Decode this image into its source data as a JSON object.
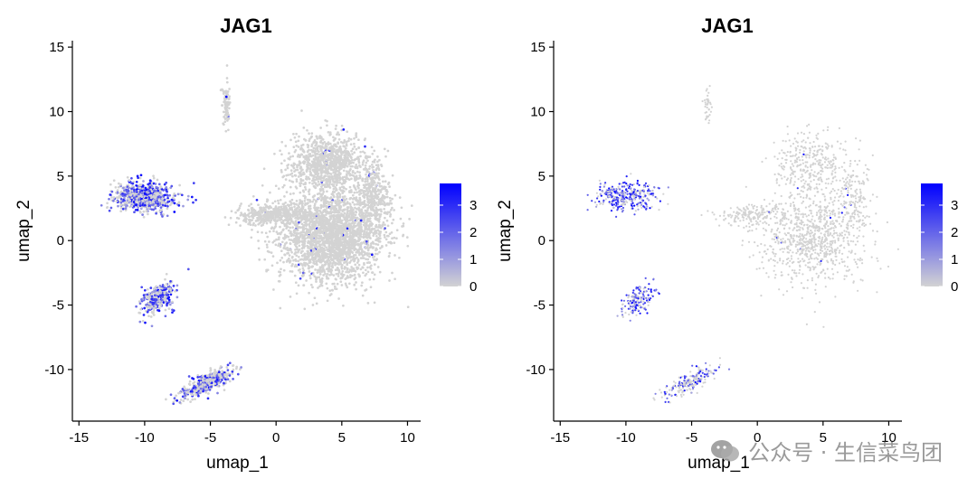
{
  "colors": {
    "low": "#D3D3D3",
    "high": "#0000FF",
    "axis": "#000000",
    "text": "#000000"
  },
  "chart_data": [
    {
      "type": "scatter",
      "subtype": "umap-feature-plot",
      "title": "JAG1",
      "xlabel": "umap_1",
      "ylabel": "umap_2",
      "xlim": [
        -15.5,
        11
      ],
      "ylim": [
        -14,
        15.5
      ],
      "xticks": [
        -15,
        -10,
        -5,
        0,
        5,
        10
      ],
      "yticks": [
        -10,
        -5,
        0,
        5,
        10,
        15
      ],
      "color_scale": {
        "min": 0,
        "max": 3.8,
        "ticks": [
          0,
          1,
          2,
          3
        ]
      },
      "grid": false,
      "legend": "right colorbar",
      "density": "dense",
      "clusters": [
        {
          "name": "large-main",
          "center": [
            4.2,
            0.5
          ],
          "spread": [
            3.6,
            3.3
          ],
          "n": 2600,
          "expression": 0.05
        },
        {
          "name": "main-top",
          "center": [
            4.0,
            6.0
          ],
          "spread": [
            2.6,
            2.0
          ],
          "n": 900,
          "expression": 0.05
        },
        {
          "name": "main-left-arm",
          "center": [
            -0.5,
            2.0
          ],
          "spread": [
            2.2,
            0.7
          ],
          "n": 380,
          "expression": 0.05
        },
        {
          "name": "main-right-arm",
          "center": [
            7.5,
            3.5
          ],
          "spread": [
            1.1,
            2.5
          ],
          "n": 320,
          "expression": 0.05
        },
        {
          "name": "thin-stalk",
          "center": [
            -3.8,
            10.5
          ],
          "spread": [
            0.25,
            1.6
          ],
          "n": 90,
          "expression": 0.05
        },
        {
          "name": "left-upper",
          "center": [
            -10.0,
            3.4
          ],
          "spread": [
            2.1,
            1.0
          ],
          "n": 700,
          "expression": 0.6
        },
        {
          "name": "left-middle",
          "center": [
            -9.0,
            -4.5
          ],
          "spread": [
            1.1,
            1.0
          ],
          "n": 330,
          "expression": 0.55
        },
        {
          "name": "left-lower",
          "center": [
            -5.2,
            -11.0
          ],
          "spread": [
            1.8,
            0.7
          ],
          "n": 420,
          "expression": 0.45
        }
      ]
    },
    {
      "type": "scatter",
      "subtype": "umap-feature-plot",
      "title": "JAG1",
      "xlabel": "umap_1",
      "ylabel": "umap_2",
      "xlim": [
        -15.5,
        11
      ],
      "ylim": [
        -14,
        15.5
      ],
      "xticks": [
        -15,
        -10,
        -5,
        0,
        5,
        10
      ],
      "yticks": [
        -10,
        -5,
        0,
        5,
        10,
        15
      ],
      "color_scale": {
        "min": 0,
        "max": 3.8,
        "ticks": [
          0,
          1,
          2,
          3
        ]
      },
      "grid": false,
      "legend": "right colorbar",
      "density": "sparse",
      "clusters": [
        {
          "name": "large-main",
          "center": [
            4.2,
            0.5
          ],
          "spread": [
            3.6,
            3.3
          ],
          "n": 900,
          "expression": 0.03
        },
        {
          "name": "main-top",
          "center": [
            4.0,
            6.0
          ],
          "spread": [
            2.6,
            2.0
          ],
          "n": 320,
          "expression": 0.03
        },
        {
          "name": "main-left-arm",
          "center": [
            -0.5,
            2.0
          ],
          "spread": [
            2.2,
            0.7
          ],
          "n": 150,
          "expression": 0.03
        },
        {
          "name": "main-right-arm",
          "center": [
            7.5,
            3.5
          ],
          "spread": [
            1.1,
            2.5
          ],
          "n": 120,
          "expression": 0.03
        },
        {
          "name": "thin-stalk",
          "center": [
            -3.8,
            10.5
          ],
          "spread": [
            0.25,
            1.6
          ],
          "n": 40,
          "expression": 0.03
        },
        {
          "name": "left-upper",
          "center": [
            -10.0,
            3.4
          ],
          "spread": [
            2.1,
            1.0
          ],
          "n": 320,
          "expression": 0.7
        },
        {
          "name": "left-middle",
          "center": [
            -9.0,
            -4.5
          ],
          "spread": [
            1.1,
            1.0
          ],
          "n": 150,
          "expression": 0.6
        },
        {
          "name": "left-lower",
          "center": [
            -5.2,
            -11.0
          ],
          "spread": [
            1.8,
            0.7
          ],
          "n": 200,
          "expression": 0.45
        }
      ]
    }
  ],
  "watermark": {
    "text": "公众号 · 生信菜鸟团",
    "icon": "wechat-icon"
  }
}
